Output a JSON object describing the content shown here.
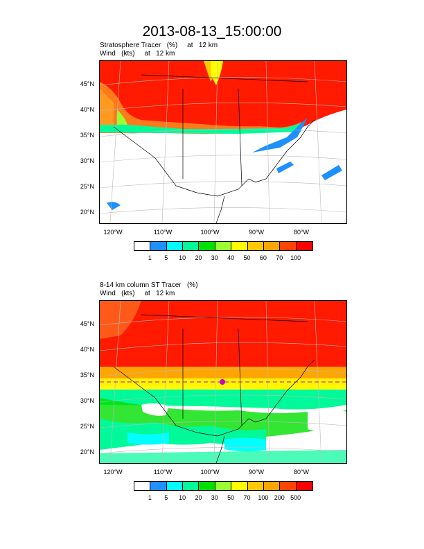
{
  "title": "2013-08-13_15:00:00",
  "panels": [
    {
      "subtitle_line1": "Stratosphere Tracer   (%)     at   12 km",
      "subtitle_line2": "Wind   (kts)     at   12 km",
      "lat_labels": [
        "45°N",
        "40°N",
        "35°N",
        "30°N",
        "25°N",
        "20°N"
      ],
      "lon_labels": [
        "120°W",
        "110°W",
        "100°W",
        "90°W",
        "80°W"
      ],
      "colorbar_labels": [
        "1",
        "5",
        "10",
        "20",
        "30",
        "40",
        "50",
        "60",
        "70",
        "100"
      ],
      "colorbar_colors": [
        "#ffffff",
        "#1e90ff",
        "#00ffff",
        "#00fa9a",
        "#00e000",
        "#9aff30",
        "#ffff00",
        "#ffc800",
        "#ffa500",
        "#ff4500",
        "#ff0000"
      ]
    },
    {
      "subtitle_line1": "8-14 km column ST Tracer   (%)",
      "subtitle_line2": "Wind   (kts)     at   12 km",
      "lat_labels": [
        "45°N",
        "40°N",
        "35°N",
        "30°N",
        "25°N",
        "20°N"
      ],
      "lon_labels": [
        "120°W",
        "110°W",
        "100°W",
        "90°W",
        "80°W"
      ],
      "colorbar_labels": [
        "1",
        "5",
        "10",
        "20",
        "30",
        "50",
        "70",
        "100",
        "200",
        "500"
      ],
      "colorbar_colors": [
        "#ffffff",
        "#1e90ff",
        "#00ffff",
        "#00fa9a",
        "#00e000",
        "#9aff30",
        "#ffff00",
        "#ffc800",
        "#ffa500",
        "#ff4500",
        "#ff0000"
      ]
    }
  ]
}
